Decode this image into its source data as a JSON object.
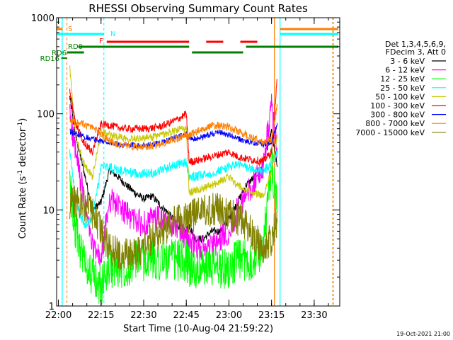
{
  "chart_data": {
    "type": "line",
    "title": "RHESSI Observing Summary Count Rates",
    "xlabel": "Start Time (10-Aug-04 21:59:22)",
    "ylabel_main": "Count Rate (s",
    "ylabel_sup1": "-1",
    "ylabel_mid": " detector",
    "ylabel_sup2": "-1",
    "ylabel_end": ")",
    "xlim": [
      "21:59:22",
      "23:39:00"
    ],
    "ylim": [
      1,
      1000
    ],
    "yscale": "log",
    "xticks": [
      "22:00",
      "22:15",
      "22:30",
      "22:45",
      "23:00",
      "23:15",
      "23:30"
    ],
    "yticks": [
      {
        "v": 1,
        "label": "1"
      },
      {
        "v": 10,
        "label": "10"
      },
      {
        "v": 100,
        "label": "100"
      },
      {
        "v": 1000,
        "label": "1000"
      }
    ],
    "legend_header": [
      "Det 1,3,4,5,6,9,",
      "FDecim 3, Att 0"
    ],
    "legend_position": "right",
    "timestamp": "19-Oct-2021 21:00",
    "series": [
      {
        "name": "3 - 6 keV",
        "color": "#000000",
        "x": [
          "22:04",
          "22:06",
          "22:09",
          "22:12",
          "22:15",
          "22:18",
          "22:21",
          "22:24",
          "22:27",
          "22:30",
          "22:33",
          "22:36",
          "22:39",
          "22:42",
          "22:45",
          "22:46",
          "22:48",
          "22:51",
          "22:54",
          "22:57",
          "23:00",
          "23:03",
          "23:06",
          "23:09",
          "23:12",
          "23:15",
          "23:17"
        ],
        "values": [
          150,
          60,
          25,
          10,
          12,
          26,
          22,
          18,
          15,
          13,
          14,
          11,
          9,
          7,
          6,
          7,
          5,
          5,
          6,
          6,
          8,
          12,
          18,
          22,
          30,
          65,
          28
        ]
      },
      {
        "name": "6 - 12 keV",
        "color": "#ff00ff",
        "x": [
          "22:04",
          "22:06",
          "22:09",
          "22:12",
          "22:15",
          "22:18",
          "22:21",
          "22:24",
          "22:27",
          "22:30",
          "22:33",
          "22:36",
          "22:39",
          "22:42",
          "22:45",
          "22:46",
          "22:48",
          "22:51",
          "22:54",
          "22:57",
          "23:00",
          "23:03",
          "23:06",
          "23:09",
          "23:12",
          "23:15",
          "23:17"
        ],
        "values": [
          100,
          40,
          13,
          4,
          3,
          13,
          11,
          9,
          8,
          7,
          8,
          8,
          7,
          7,
          5,
          5,
          4,
          4,
          4,
          5,
          6,
          10,
          14,
          20,
          28,
          120,
          40
        ]
      },
      {
        "name": "12 - 25 keV",
        "color": "#00ff00",
        "x": [
          "22:04",
          "22:06",
          "22:09",
          "22:12",
          "22:15",
          "22:18",
          "22:21",
          "22:24",
          "22:27",
          "22:30",
          "22:33",
          "22:36",
          "22:39",
          "22:42",
          "22:45",
          "22:46",
          "22:48",
          "22:51",
          "22:54",
          "22:57",
          "23:00",
          "23:03",
          "23:06",
          "23:09",
          "23:12",
          "23:15",
          "23:17"
        ],
        "values": [
          20,
          6,
          3,
          2,
          1.6,
          2.5,
          2.5,
          2.5,
          3,
          3,
          3,
          3,
          3,
          3,
          3,
          2.5,
          2.5,
          2.5,
          2.5,
          2.5,
          2.5,
          3,
          3,
          3,
          4,
          30,
          10
        ]
      },
      {
        "name": "25 - 50 keV",
        "color": "#00ffff",
        "x": [
          "22:04",
          "22:06",
          "22:09",
          "22:12",
          "22:15",
          "22:18",
          "22:21",
          "22:24",
          "22:27",
          "22:30",
          "22:33",
          "22:36",
          "22:39",
          "22:42",
          "22:45",
          "22:46",
          "22:48",
          "22:51",
          "22:54",
          "22:57",
          "23:00",
          "23:03",
          "23:06",
          "23:09",
          "23:12",
          "23:15",
          "23:17"
        ],
        "values": [
          40,
          13,
          7,
          8,
          28,
          28,
          26,
          25,
          24,
          24,
          24,
          26,
          28,
          30,
          31,
          22,
          22,
          23,
          24,
          26,
          28,
          30,
          28,
          26,
          25,
          30,
          40
        ]
      },
      {
        "name": "50 - 100 keV",
        "color": "#c8c800",
        "x": [
          "22:04",
          "22:06",
          "22:09",
          "22:12",
          "22:15",
          "22:18",
          "22:21",
          "22:24",
          "22:27",
          "22:30",
          "22:33",
          "22:36",
          "22:39",
          "22:42",
          "22:45",
          "22:46",
          "22:48",
          "22:51",
          "22:54",
          "22:57",
          "23:00",
          "23:03",
          "23:06",
          "23:09",
          "23:12",
          "23:15",
          "23:17"
        ],
        "values": [
          300,
          60,
          30,
          22,
          65,
          60,
          58,
          56,
          56,
          56,
          57,
          60,
          64,
          68,
          70,
          15,
          16,
          17,
          18,
          20,
          22,
          18,
          16,
          15,
          14,
          25,
          60
        ]
      },
      {
        "name": "100 - 300 keV",
        "color": "#ff0000",
        "x": [
          "22:04",
          "22:06",
          "22:09",
          "22:12",
          "22:15",
          "22:18",
          "22:21",
          "22:24",
          "22:27",
          "22:30",
          "22:33",
          "22:36",
          "22:39",
          "22:42",
          "22:45",
          "22:46",
          "22:48",
          "22:51",
          "22:54",
          "22:57",
          "23:00",
          "23:03",
          "23:06",
          "23:09",
          "23:12",
          "23:15",
          "23:17"
        ],
        "values": [
          170,
          80,
          50,
          40,
          78,
          76,
          72,
          70,
          70,
          70,
          71,
          74,
          80,
          88,
          100,
          32,
          32,
          34,
          36,
          38,
          40,
          36,
          34,
          33,
          32,
          40,
          230
        ]
      },
      {
        "name": "300 - 800 keV",
        "color": "#0000ff",
        "x": [
          "22:04",
          "22:06",
          "22:09",
          "22:12",
          "22:15",
          "22:18",
          "22:21",
          "22:24",
          "22:27",
          "22:30",
          "22:33",
          "22:36",
          "22:39",
          "22:42",
          "22:45",
          "22:46",
          "22:48",
          "22:51",
          "22:54",
          "22:57",
          "23:00",
          "23:03",
          "23:06",
          "23:09",
          "23:12",
          "23:15",
          "23:17"
        ],
        "values": [
          65,
          62,
          58,
          55,
          52,
          50,
          48,
          47,
          47,
          47,
          48,
          50,
          54,
          58,
          62,
          56,
          55,
          58,
          62,
          64,
          60,
          55,
          52,
          50,
          48,
          50,
          80
        ]
      },
      {
        "name": "800 - 7000 keV",
        "color": "#ff8000",
        "x": [
          "22:04",
          "22:06",
          "22:09",
          "22:12",
          "22:15",
          "22:18",
          "22:21",
          "22:24",
          "22:27",
          "22:30",
          "22:33",
          "22:36",
          "22:39",
          "22:42",
          "22:45",
          "22:46",
          "22:48",
          "22:51",
          "22:54",
          "22:57",
          "23:00",
          "23:03",
          "23:06",
          "23:09",
          "23:12",
          "23:15",
          "23:17"
        ],
        "values": [
          85,
          82,
          78,
          72,
          62,
          52,
          48,
          46,
          45,
          45,
          46,
          48,
          52,
          56,
          60,
          60,
          64,
          70,
          75,
          76,
          72,
          66,
          60,
          55,
          50,
          55,
          120
        ]
      },
      {
        "name": "7000 - 15000 keV",
        "color": "#808000",
        "x": [
          "22:04",
          "22:06",
          "22:09",
          "22:12",
          "22:15",
          "22:18",
          "22:21",
          "22:24",
          "22:27",
          "22:30",
          "22:33",
          "22:36",
          "22:39",
          "22:42",
          "22:45",
          "22:46",
          "22:48",
          "22:51",
          "22:54",
          "22:57",
          "23:00",
          "23:03",
          "23:06",
          "23:09",
          "23:12",
          "23:15",
          "23:17"
        ],
        "values": [
          12,
          12,
          11,
          9,
          6,
          4,
          3.5,
          3.5,
          3.5,
          4,
          5,
          6,
          7,
          8,
          8,
          8,
          9,
          10,
          10,
          10,
          9,
          8,
          7,
          5,
          4,
          5,
          8
        ]
      }
    ],
    "flag_labels": [
      {
        "label": "S",
        "color": "#ff8000"
      },
      {
        "label": "N",
        "color": "#00ffff"
      },
      {
        "label": "F",
        "color": "#ff0000"
      },
      {
        "label": "RD0",
        "color": "#008000"
      },
      {
        "label": "RD6",
        "color": "#008000"
      },
      {
        "label": "RD16",
        "color": "#008000"
      }
    ]
  }
}
